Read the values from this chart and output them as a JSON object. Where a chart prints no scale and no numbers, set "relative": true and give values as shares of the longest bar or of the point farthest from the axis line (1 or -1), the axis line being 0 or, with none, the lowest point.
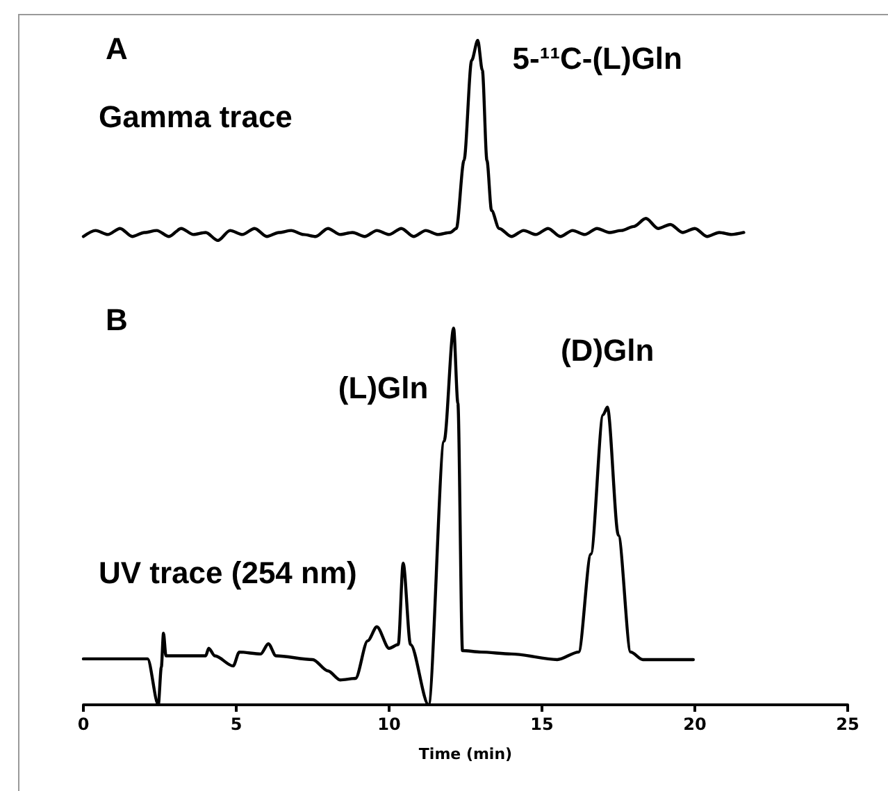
{
  "chart_data": [
    {
      "type": "line",
      "title": "A",
      "relative": true,
      "tick_labels": false,
      "grid": false,
      "marker": "none",
      "line_style": "solid",
      "xlim": [
        0,
        25
      ],
      "annotations": [
        "Gamma trace",
        {
          "text": "5-¹¹C-(L)Gln",
          "x": 12.9,
          "y": 1
        }
      ],
      "series": [
        {
          "color": "#000000",
          "x": [
            0,
            0.4,
            0.8,
            1.2,
            1.6,
            2.0,
            2.4,
            2.8,
            3.2,
            3.6,
            4.0,
            4.4,
            4.8,
            5.2,
            5.6,
            6.0,
            6.4,
            6.8,
            7.2,
            7.6,
            8.0,
            8.4,
            8.8,
            9.2,
            9.6,
            10.0,
            10.4,
            10.8,
            11.2,
            11.6,
            12.0,
            12.2,
            12.45,
            12.7,
            12.9,
            13.05,
            13.2,
            13.35,
            13.6,
            14.0,
            14.4,
            14.8,
            15.2,
            15.6,
            16.0,
            16.4,
            16.8,
            17.2,
            17.6,
            18.0,
            18.4,
            18.8,
            19.2,
            19.6,
            20.0,
            20.4,
            20.8,
            21.2,
            21.6
          ],
          "values": [
            0.02,
            0.05,
            0.03,
            0.06,
            0.02,
            0.04,
            0.05,
            0.02,
            0.06,
            0.03,
            0.04,
            0,
            0.05,
            0.03,
            0.06,
            0.02,
            0.04,
            0.05,
            0.03,
            0.02,
            0.06,
            0.03,
            0.04,
            0.02,
            0.05,
            0.03,
            0.06,
            0.02,
            0.05,
            0.03,
            0.04,
            0.06,
            0.4,
            0.9,
            1,
            0.85,
            0.4,
            0.15,
            0.06,
            0.02,
            0.05,
            0.03,
            0.06,
            0.02,
            0.05,
            0.03,
            0.06,
            0.04,
            0.05,
            0.07,
            0.11,
            0.06,
            0.08,
            0.04,
            0.06,
            0.02,
            0.04,
            0.03,
            0.04
          ]
        }
      ]
    },
    {
      "type": "line",
      "title": "B",
      "relative": true,
      "tick_labels": "x",
      "grid": false,
      "marker": "none",
      "line_style": "solid",
      "xlabel": "Time (min)",
      "xlim": [
        0,
        25
      ],
      "xticks": [
        0,
        5,
        10,
        15,
        20,
        25
      ],
      "annotations": [
        "UV trace (254 nm)",
        {
          "text": "(L)Gln",
          "x": 12.1,
          "y": 1
        },
        {
          "text": "(D)Gln",
          "x": 17.14,
          "y": 0.79
        }
      ],
      "series": [
        {
          "color": "#000000",
          "x": [
            0,
            2.1,
            2.45,
            2.55,
            2.62,
            2.7,
            4.0,
            4.1,
            4.3,
            4.9,
            5.1,
            5.8,
            6.05,
            6.3,
            7.5,
            8.0,
            8.4,
            8.9,
            9.3,
            9.6,
            10.0,
            10.3,
            10.46,
            10.7,
            11.29,
            11.8,
            12.11,
            12.25,
            12.4,
            13.0,
            14.0,
            15.5,
            16.2,
            16.6,
            17.0,
            17.14,
            17.5,
            17.9,
            18.3,
            19.95
          ],
          "values": [
            0.122,
            0.122,
            0,
            0.1,
            0.19,
            0.13,
            0.13,
            0.15,
            0.13,
            0.103,
            0.14,
            0.135,
            0.162,
            0.13,
            0.12,
            0.09,
            0.066,
            0.07,
            0.17,
            0.207,
            0.15,
            0.16,
            0.376,
            0.16,
            0,
            0.7,
            1,
            0.8,
            0.144,
            0.14,
            0.135,
            0.12,
            0.14,
            0.4,
            0.77,
            0.79,
            0.45,
            0.14,
            0.12,
            0.12
          ]
        }
      ]
    }
  ]
}
